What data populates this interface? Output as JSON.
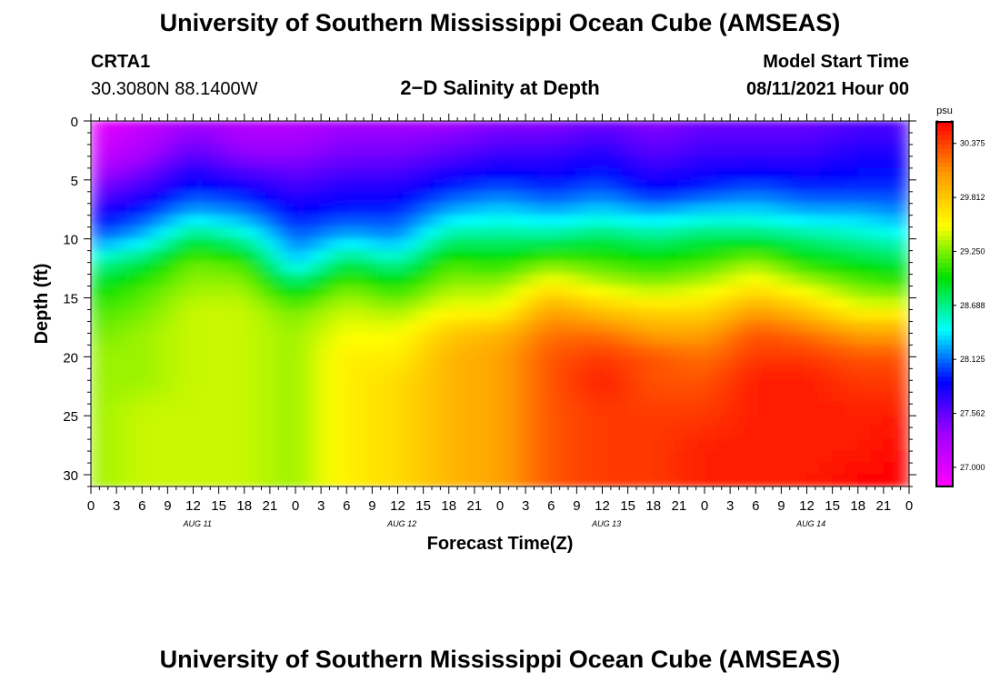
{
  "header": {
    "title": "University of Southern Mississippi Ocean Cube (AMSEAS)",
    "footer_title": "University of Southern Mississippi Ocean Cube (AMSEAS)",
    "station": "CRTA1",
    "coords": "30.3080N  88.1400W",
    "model_start_label": "Model Start Time",
    "model_start_value": "08/11/2021 Hour 00"
  },
  "colors": {
    "magenta": "#ff00ff",
    "violet": "#a000ff",
    "blue": "#0000ff",
    "cyan": "#00ffff",
    "green": "#00e000",
    "yellow": "#ffff00",
    "orange": "#ff9900",
    "red": "#ff0000"
  },
  "chart_data": {
    "type": "heatmap",
    "title": "2−D Salinity at Depth",
    "xlabel": "Forecast Time(Z)",
    "ylabel": "Depth (ft)",
    "ylim": [
      0,
      31
    ],
    "yticks": [
      "0",
      "5",
      "10",
      "15",
      "20",
      "25",
      "30"
    ],
    "xticks": [
      "0",
      "3",
      "6",
      "9",
      "12",
      "15",
      "18",
      "21",
      "0",
      "3",
      "6",
      "9",
      "12",
      "15",
      "18",
      "21",
      "0",
      "3",
      "6",
      "9",
      "12",
      "15",
      "18",
      "21",
      "0",
      "3",
      "6",
      "9",
      "12",
      "15",
      "18",
      "21",
      "0"
    ],
    "day_labels": [
      "AUG 11",
      "AUG 12",
      "AUG 13",
      "AUG 14"
    ],
    "colorbar": {
      "unit": "psu",
      "min": 26.8,
      "max": 30.6,
      "ticks": [
        "30.375",
        "29.812",
        "29.250",
        "28.688",
        "28.125",
        "27.562",
        "27.000"
      ]
    },
    "time_hours": [
      0,
      6,
      12,
      18,
      24,
      30,
      36,
      42,
      48,
      54,
      60,
      66,
      72,
      78,
      84,
      90,
      96
    ],
    "depths_ft": [
      0,
      3,
      6,
      8,
      10,
      12,
      14,
      16,
      18,
      20,
      22,
      25,
      28,
      31
    ],
    "salinity_psu": [
      [
        26.9,
        27.1,
        27.5,
        27.8,
        28.1,
        28.6,
        28.9,
        29.1,
        29.2,
        29.3,
        29.3,
        29.3,
        29.3,
        29.3
      ],
      [
        27.1,
        27.3,
        27.7,
        28.0,
        28.3,
        28.8,
        29.1,
        29.2,
        29.3,
        29.3,
        29.3,
        29.4,
        29.4,
        29.4
      ],
      [
        27.3,
        27.6,
        28.0,
        28.3,
        28.8,
        29.2,
        29.3,
        29.4,
        29.4,
        29.4,
        29.4,
        29.4,
        29.4,
        29.4
      ],
      [
        27.2,
        27.4,
        27.9,
        28.2,
        28.6,
        29.1,
        29.3,
        29.4,
        29.4,
        29.4,
        29.4,
        29.4,
        29.4,
        29.4
      ],
      [
        27.2,
        27.4,
        27.7,
        27.9,
        28.1,
        28.3,
        28.8,
        29.2,
        29.3,
        29.3,
        29.3,
        29.3,
        29.3,
        29.3
      ],
      [
        27.3,
        27.5,
        27.8,
        28.0,
        28.3,
        28.8,
        29.2,
        29.4,
        29.5,
        29.6,
        29.6,
        29.6,
        29.6,
        29.6
      ],
      [
        27.3,
        27.5,
        27.8,
        28.0,
        28.2,
        28.6,
        29.0,
        29.3,
        29.5,
        29.6,
        29.7,
        29.7,
        29.7,
        29.7
      ],
      [
        27.3,
        27.6,
        28.0,
        28.3,
        28.7,
        29.1,
        29.3,
        29.5,
        29.8,
        29.9,
        29.9,
        29.9,
        29.9,
        29.9
      ],
      [
        27.4,
        27.7,
        28.1,
        28.4,
        28.7,
        29.0,
        29.3,
        29.5,
        29.9,
        30.0,
        30.0,
        30.0,
        30.0,
        30.0
      ],
      [
        27.4,
        27.7,
        28.0,
        28.3,
        28.7,
        29.2,
        29.6,
        30.0,
        30.2,
        30.3,
        30.3,
        30.3,
        30.3,
        30.3
      ],
      [
        27.5,
        27.8,
        28.1,
        28.4,
        28.8,
        29.1,
        29.4,
        29.8,
        30.2,
        30.4,
        30.5,
        30.4,
        30.4,
        30.4
      ],
      [
        27.4,
        27.6,
        27.9,
        28.3,
        28.7,
        29.0,
        29.3,
        29.7,
        30.0,
        30.3,
        30.3,
        30.4,
        30.4,
        30.4
      ],
      [
        27.5,
        27.7,
        28.0,
        28.4,
        28.8,
        29.1,
        29.4,
        29.7,
        30.0,
        30.2,
        30.3,
        30.4,
        30.5,
        30.5
      ],
      [
        27.5,
        27.7,
        28.1,
        28.4,
        28.8,
        29.3,
        29.6,
        30.0,
        30.3,
        30.4,
        30.5,
        30.5,
        30.5,
        30.5
      ],
      [
        27.5,
        27.7,
        28.0,
        28.3,
        28.7,
        29.0,
        29.4,
        29.8,
        30.2,
        30.4,
        30.5,
        30.5,
        30.5,
        30.5
      ],
      [
        27.6,
        27.8,
        28.0,
        28.3,
        28.6,
        28.9,
        29.2,
        29.5,
        30.0,
        30.3,
        30.4,
        30.5,
        30.5,
        30.6
      ],
      [
        27.6,
        27.8,
        28.0,
        28.2,
        28.5,
        28.8,
        29.1,
        29.5,
        30.0,
        30.3,
        30.4,
        30.5,
        30.6,
        30.6
      ]
    ]
  }
}
